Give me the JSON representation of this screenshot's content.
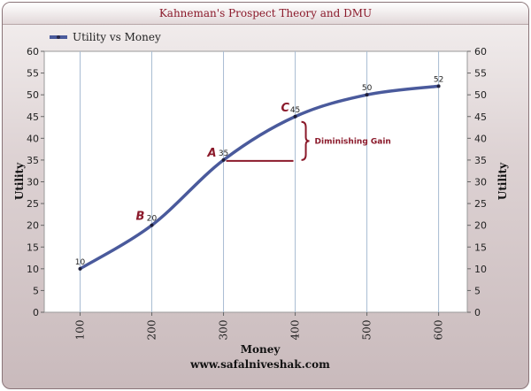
{
  "chart_data": {
    "type": "line",
    "title": "Kahneman's Prospect Theory and DMU",
    "xlabel": "Money",
    "ylabel": "Utility",
    "ylabel_right": "Utility",
    "footer": "www.safalniveshak.com",
    "x": [
      100,
      200,
      300,
      400,
      500,
      600
    ],
    "categories": [
      "100",
      "200",
      "300",
      "400",
      "500",
      "600"
    ],
    "ylim": [
      0,
      60
    ],
    "yticks": [
      0,
      5,
      10,
      15,
      20,
      25,
      30,
      35,
      40,
      45,
      50,
      55,
      60
    ],
    "grid": "vertical",
    "legend": "top-left",
    "series": [
      {
        "name": "Utility vs Money",
        "values": [
          10,
          20,
          35,
          45,
          50,
          52
        ],
        "color": "#4a5a9c"
      }
    ],
    "annotations": [
      {
        "text": "A",
        "x": 300,
        "y": 35
      },
      {
        "text": "B",
        "x": 200,
        "y": 20
      },
      {
        "text": "C",
        "x": 400,
        "y": 45
      }
    ],
    "gain_line": {
      "from_x": 300,
      "to_x": 400,
      "y": 35,
      "label": "Diminishing Gain",
      "color": "#8b1a2b"
    }
  }
}
